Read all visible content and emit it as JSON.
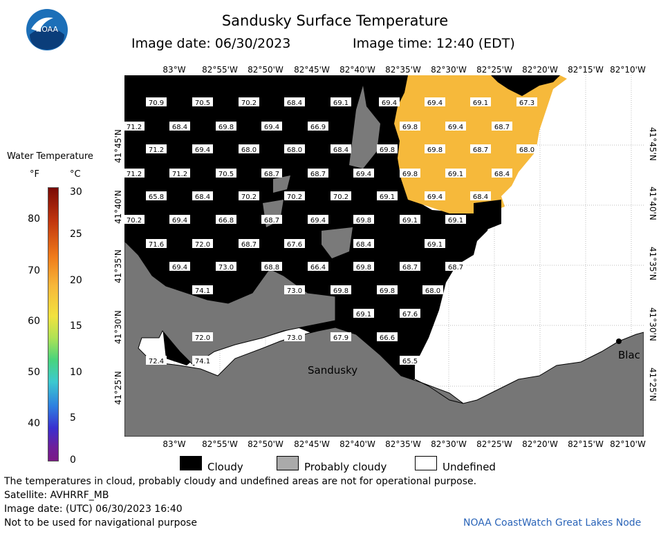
{
  "header": {
    "title": "Sandusky Surface Temperature",
    "image_date": "Image date: 06/30/2023",
    "image_time": "Image time: 12:40 (EDT)",
    "logo_text": "NOAA"
  },
  "scale": {
    "title": "Water Temperature",
    "unit_f": "°F",
    "unit_c": "°C",
    "f_ticks": [
      "80",
      "70",
      "60",
      "50",
      "40"
    ],
    "c_ticks": [
      "30",
      "25",
      "20",
      "15",
      "10",
      "5",
      "0"
    ]
  },
  "axes": {
    "lon_labels": [
      "83°W",
      "82°55'W",
      "82°50'W",
      "82°45'W",
      "82°40'W",
      "82°35'W",
      "82°30'W",
      "82°25'W",
      "82°20'W",
      "82°15'W",
      "82°10'W"
    ],
    "lat_labels": [
      "41°45'N",
      "41°40'N",
      "41°35'N",
      "41°30'N",
      "41°25'N"
    ]
  },
  "places": {
    "sandusky": "Sandusky",
    "blac": "Blac"
  },
  "temps": [
    [
      "70.9",
      "70.5",
      "70.2",
      "68.4",
      "69.1",
      "69.4",
      "69.4",
      "69.1",
      "67.3"
    ],
    [
      "71.2",
      "68.4",
      "69.8",
      "69.4",
      "66.9",
      "69.8",
      "69.4",
      "68.7"
    ],
    [
      "71.2",
      "69.4",
      "68.0",
      "68.0",
      "68.4",
      "69.8",
      "69.8",
      "68.7",
      "68.0"
    ],
    [
      "71.2",
      "71.2",
      "70.5",
      "68.7",
      "68.7",
      "69.4",
      "69.8",
      "69.1",
      "68.4"
    ],
    [
      "65.8",
      "68.4",
      "70.2",
      "70.2",
      "70.2",
      "69.1",
      "69.4",
      "68.4"
    ],
    [
      "70.2",
      "69.4",
      "66.8",
      "68.7",
      "69.4",
      "69.8",
      "69.1",
      "69.1"
    ],
    [
      "71.6",
      "72.0",
      "68.7",
      "67.6",
      "68.4",
      "69.1"
    ],
    [
      "69.4",
      "73.0",
      "68.8",
      "66.4",
      "69.8",
      "68.7",
      "68.7"
    ],
    [
      "74.1",
      "73.0",
      "69.8",
      "69.8",
      "68.0"
    ],
    [
      "69.1",
      "67.6"
    ],
    [
      "72.0",
      "73.0",
      "67.9",
      "66.6"
    ],
    [
      "72.4",
      "74.1",
      "65.5"
    ]
  ],
  "legend": {
    "cloudy": "Cloudy",
    "probably_cloudy": "Probably cloudy",
    "undefined": "Undefined"
  },
  "footer": {
    "disclaimer": "The temperatures in cloud, probably cloudy and undefined areas are not for operational purpose.",
    "satellite": "Satellite: AVHRRF_MB",
    "utc_date": "Image date: (UTC) 06/30/2023  16:40",
    "nav_warning": "Not to be used for navigational purpose",
    "node": "NOAA CoastWatch Great Lakes Node"
  },
  "colors": {
    "cloudy": "#000000",
    "probably_cloudy": "#7a7a7a",
    "undefined": "#ffffff",
    "warm_water": "#f6b93b",
    "land": "#767676"
  }
}
